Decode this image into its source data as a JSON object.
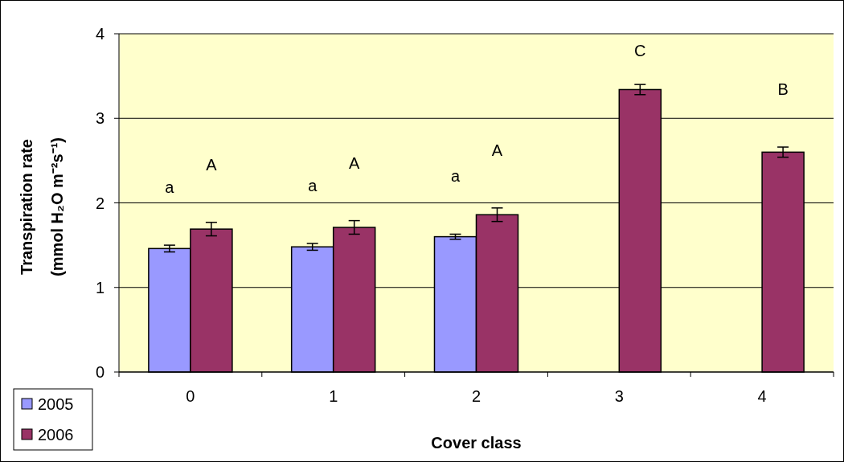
{
  "chart_data": {
    "type": "bar",
    "xlabel": "Cover class",
    "ylabel": "Transpiration rate\n(mmol H₂O m⁻²s⁻¹)",
    "categories": [
      "0",
      "1",
      "2",
      "3",
      "4"
    ],
    "series": [
      {
        "name": "2005",
        "color": "#9999ff",
        "values": [
          1.46,
          1.48,
          1.6,
          null,
          null
        ],
        "errors": [
          0.04,
          0.04,
          0.03,
          null,
          null
        ]
      },
      {
        "name": "2006",
        "color": "#993366",
        "values": [
          1.69,
          1.71,
          1.86,
          3.34,
          2.6
        ],
        "errors": [
          0.08,
          0.08,
          0.08,
          0.06,
          0.06
        ]
      }
    ],
    "ylim": [
      0,
      4
    ],
    "yticks": [
      0,
      1,
      2,
      3,
      4
    ],
    "grid": "y",
    "legend": "bottom left",
    "annotations": [
      "a",
      "A",
      "a",
      "A",
      "a",
      "A",
      "C",
      "B"
    ]
  }
}
